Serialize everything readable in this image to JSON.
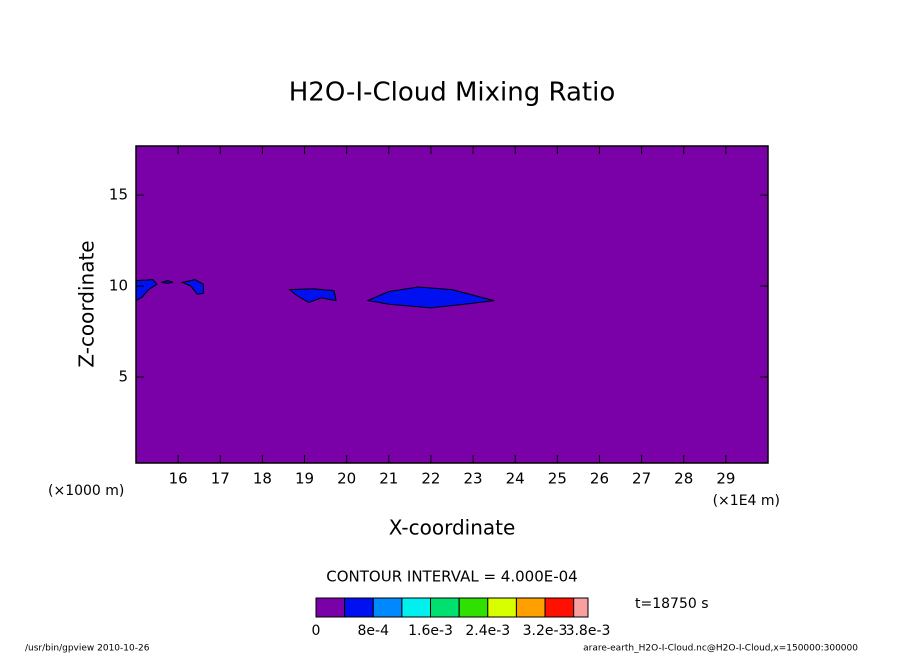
{
  "chart_data": {
    "type": "contour",
    "title": "H2O-I-Cloud Mixing Ratio",
    "x_label": "X-coordinate",
    "y_label": "Z-coordinate",
    "x_unit_left": "(×1000 m)",
    "x_unit_right": "(×1E4 m)",
    "contour_interval": "CONTOUR INTERVAL = 4.000E-04",
    "time": "t=18750 s",
    "footer_left": "/usr/bin/gpview  2010-10-26",
    "footer_right": "arare-earth_H2O-I-Cloud.nc@H2O-I-Cloud,x=150000:300000",
    "background": "#7a00a8",
    "xlim": [
      15,
      30
    ],
    "ylim": [
      0.27,
      17.7
    ],
    "xticks": [
      16,
      17,
      18,
      19,
      20,
      21,
      22,
      23,
      24,
      25,
      26,
      27,
      28,
      29
    ],
    "yticks": [
      5,
      10,
      15
    ],
    "regions": [
      {
        "color": "#0010f0",
        "x": [
          20.5,
          21.0,
          21.7,
          22.5,
          23.0,
          23.5,
          22.8,
          22.0,
          21.0
        ],
        "y": [
          9.2,
          9.7,
          9.95,
          9.8,
          9.5,
          9.2,
          9.0,
          8.8,
          9.0
        ]
      },
      {
        "color": "#0010f0",
        "x": [
          18.65,
          19.2,
          19.7,
          19.75,
          19.4,
          19.1,
          18.8
        ],
        "y": [
          9.8,
          9.85,
          9.75,
          9.2,
          9.35,
          9.1,
          9.5
        ]
      },
      {
        "color": "#0010f0",
        "x": [
          16.1,
          16.4,
          16.6,
          16.6,
          16.45,
          16.3
        ],
        "y": [
          10.2,
          10.35,
          10.1,
          9.6,
          9.55,
          10.0
        ]
      },
      {
        "color": "#0010f0",
        "x": [
          15.0,
          15.0,
          15.4,
          15.5,
          15.3,
          15.15
        ],
        "y": [
          9.2,
          10.3,
          10.35,
          10.1,
          9.8,
          9.4
        ]
      },
      {
        "color": "#0010f0",
        "x": [
          15.6,
          15.75,
          15.88,
          15.75
        ],
        "y": [
          10.2,
          10.3,
          10.2,
          10.15
        ]
      }
    ],
    "colorbar": {
      "levels": [
        0,
        0.0004,
        0.0008,
        0.0012,
        0.0016,
        0.002,
        0.0024,
        0.0028,
        0.0032,
        0.0036,
        0.0038
      ],
      "colors": [
        "#7a00a8",
        "#0010f0",
        "#0088ff",
        "#00f0f0",
        "#00e070",
        "#30e000",
        "#d8ff00",
        "#ffa000",
        "#ff1000",
        "#f8a0a0"
      ],
      "ticks": [
        0,
        {
          "value": 0.0008,
          "label": "8e-4"
        },
        {
          "value": 0.0016,
          "label": "1.6e-3"
        },
        {
          "value": 0.0024,
          "label": "2.4e-3"
        },
        {
          "value": 0.0032,
          "label": "3.2e-3"
        },
        {
          "value": 0.0038,
          "label": "3.8e-3"
        }
      ]
    }
  }
}
